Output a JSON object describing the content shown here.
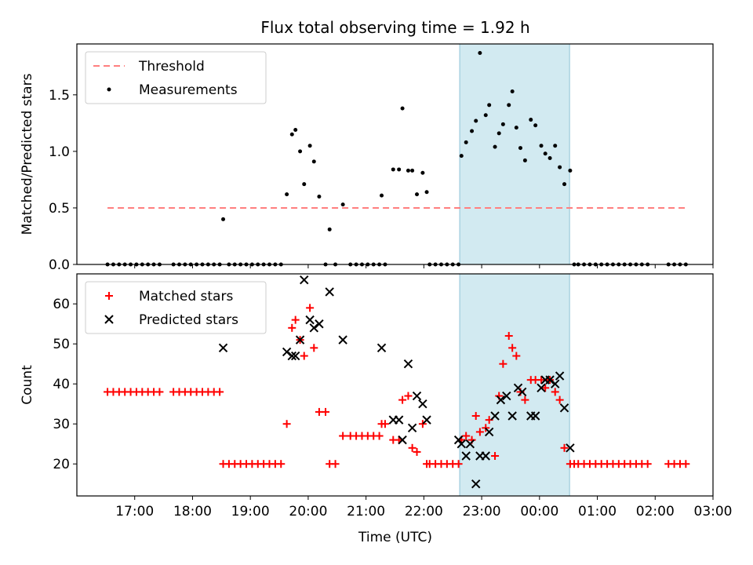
{
  "chart_data": {
    "type": "scatter",
    "title": "Flux total observing time = 1.92 h",
    "shared_x": {
      "label": "Time (UTC)",
      "unit": "hours since 00:00 UTC of first day (values > 24 are the next day)",
      "range": [
        16.0,
        27.0
      ],
      "ticks": [
        17,
        18,
        19,
        20,
        21,
        22,
        23,
        24,
        25,
        26,
        27
      ],
      "tick_labels": [
        "17:00",
        "18:00",
        "19:00",
        "20:00",
        "21:00",
        "22:00",
        "23:00",
        "00:00",
        "01:00",
        "02:00",
        "03:00"
      ]
    },
    "highlight_span": {
      "x_start": 22.62,
      "x_end": 24.52,
      "color": "#add8e6"
    },
    "panels": [
      {
        "ylabel": "Matched/Predicted stars",
        "ylim": [
          0,
          1.95
        ],
        "yticks": [
          0.0,
          0.5,
          1.0,
          1.5
        ],
        "ytick_labels": [
          "0.0",
          "0.5",
          "1.0",
          "1.5"
        ],
        "legend_position": "upper-left",
        "legend": [
          {
            "label": "Threshold",
            "style": "dashed-line",
            "color": "#ff7f7f"
          },
          {
            "label": "Measurements",
            "style": "dot",
            "color": "#000000"
          }
        ],
        "threshold": {
          "y": 0.5,
          "x_range": [
            16.53,
            26.53
          ],
          "color": "#ff7f7f"
        },
        "series": [
          {
            "name": "Measurements",
            "color": "#000000",
            "x": [
              16.53,
              16.63,
              16.73,
              16.83,
              16.93,
              17.03,
              17.13,
              17.23,
              17.33,
              17.43,
              17.67,
              17.77,
              17.87,
              17.97,
              18.07,
              18.17,
              18.27,
              18.37,
              18.47,
              18.53,
              18.63,
              18.73,
              18.83,
              18.93,
              19.03,
              19.13,
              19.23,
              19.33,
              19.43,
              19.53,
              19.63,
              19.72,
              19.78,
              19.86,
              19.93,
              20.03,
              20.1,
              20.19,
              20.3,
              20.37,
              20.47,
              20.6,
              20.73,
              20.83,
              20.93,
              21.03,
              21.13,
              21.23,
              21.27,
              21.33,
              21.47,
              21.57,
              21.63,
              21.73,
              21.8,
              21.88,
              21.98,
              22.05,
              22.1,
              22.2,
              22.3,
              22.4,
              22.5,
              22.6,
              22.65,
              22.73,
              22.83,
              22.9,
              22.97,
              23.07,
              23.13,
              23.23,
              23.3,
              23.37,
              23.47,
              23.53,
              23.6,
              23.67,
              23.75,
              23.85,
              23.93,
              24.03,
              24.1,
              24.18,
              24.27,
              24.35,
              24.43,
              24.53,
              24.6,
              24.67,
              24.77,
              24.87,
              24.97,
              25.07,
              25.17,
              25.27,
              25.37,
              25.47,
              25.57,
              25.67,
              25.77,
              25.87,
              26.23,
              26.33,
              26.43,
              26.53
            ],
            "y": [
              0,
              0,
              0,
              0,
              0,
              0,
              0,
              0,
              0,
              0,
              0,
              0,
              0,
              0,
              0,
              0,
              0,
              0,
              0,
              0.4,
              0,
              0,
              0,
              0,
              0,
              0,
              0,
              0,
              0,
              0,
              0.62,
              1.15,
              1.19,
              1.0,
              0.71,
              1.05,
              0.91,
              0.6,
              0,
              0.31,
              0,
              0.53,
              0,
              0,
              0,
              0,
              0,
              0,
              0.61,
              0,
              0.84,
              0.84,
              1.38,
              0.83,
              0.83,
              0.62,
              0.81,
              0.64,
              0,
              0,
              0,
              0,
              0,
              0,
              0.96,
              1.08,
              1.18,
              1.27,
              1.87,
              1.32,
              1.41,
              1.04,
              1.16,
              1.24,
              1.41,
              1.53,
              1.21,
              1.03,
              0.92,
              1.28,
              1.23,
              1.05,
              0.98,
              0.94,
              1.05,
              0.86,
              0.71,
              0.83,
              0,
              0,
              0,
              0,
              0,
              0,
              0,
              0,
              0,
              0,
              0,
              0,
              0,
              0,
              0,
              0,
              0,
              0
            ]
          }
        ]
      },
      {
        "ylabel": "Count",
        "ylim": [
          12,
          67.5
        ],
        "yticks": [
          20,
          30,
          40,
          50,
          60
        ],
        "ytick_labels": [
          "20",
          "30",
          "40",
          "50",
          "60"
        ],
        "legend_position": "upper-left",
        "legend": [
          {
            "label": "Matched stars",
            "style": "plus",
            "color": "#ff0000"
          },
          {
            "label": "Predicted stars",
            "style": "x",
            "color": "#000000"
          }
        ],
        "series": [
          {
            "name": "Matched stars",
            "marker": "plus",
            "color": "#ff0000",
            "x": [
              16.53,
              16.63,
              16.73,
              16.83,
              16.93,
              17.03,
              17.13,
              17.23,
              17.33,
              17.43,
              17.67,
              17.77,
              17.87,
              17.97,
              18.07,
              18.17,
              18.27,
              18.37,
              18.47,
              18.53,
              18.63,
              18.73,
              18.83,
              18.93,
              19.03,
              19.13,
              19.23,
              19.33,
              19.43,
              19.53,
              19.63,
              19.72,
              19.78,
              19.86,
              19.93,
              20.03,
              20.1,
              20.19,
              20.3,
              20.37,
              20.47,
              20.6,
              20.73,
              20.83,
              20.93,
              21.03,
              21.13,
              21.23,
              21.27,
              21.33,
              21.47,
              21.57,
              21.63,
              21.73,
              21.8,
              21.88,
              21.98,
              22.05,
              22.1,
              22.2,
              22.3,
              22.4,
              22.5,
              22.6,
              22.65,
              22.73,
              22.83,
              22.9,
              22.97,
              23.07,
              23.13,
              23.23,
              23.3,
              23.37,
              23.47,
              23.53,
              23.6,
              23.67,
              23.75,
              23.85,
              23.93,
              24.03,
              24.1,
              24.18,
              24.27,
              24.35,
              24.43,
              24.53,
              24.6,
              24.67,
              24.77,
              24.87,
              24.97,
              25.07,
              25.17,
              25.27,
              25.37,
              25.47,
              25.57,
              25.67,
              25.77,
              25.87,
              26.23,
              26.33,
              26.43,
              26.53
            ],
            "y": [
              38,
              38,
              38,
              38,
              38,
              38,
              38,
              38,
              38,
              38,
              38,
              38,
              38,
              38,
              38,
              38,
              38,
              38,
              38,
              20,
              20,
              20,
              20,
              20,
              20,
              20,
              20,
              20,
              20,
              20,
              30,
              54,
              56,
              51,
              47,
              59,
              49,
              33,
              33,
              20,
              20,
              27,
              27,
              27,
              27,
              27,
              27,
              27,
              30,
              30,
              26,
              26,
              36,
              37,
              24,
              23,
              30,
              20,
              20,
              20,
              20,
              20,
              20,
              20,
              26,
              27,
              26,
              32,
              28,
              29,
              31,
              22,
              37,
              45,
              52,
              49,
              47,
              38,
              36,
              41,
              41,
              41,
              39,
              41,
              38,
              36,
              24,
              20,
              20,
              20,
              20,
              20,
              20,
              20,
              20,
              20,
              20,
              20,
              20,
              20,
              20,
              20,
              20,
              20,
              20,
              20
            ]
          },
          {
            "name": "Predicted stars",
            "marker": "x",
            "color": "#000000",
            "x": [
              18.53,
              19.63,
              19.72,
              19.78,
              19.86,
              19.93,
              20.03,
              20.1,
              20.19,
              20.37,
              20.6,
              21.27,
              21.47,
              21.57,
              21.63,
              21.73,
              21.8,
              21.88,
              21.98,
              22.05,
              22.6,
              22.65,
              22.73,
              22.8,
              22.9,
              22.97,
              23.07,
              23.13,
              23.23,
              23.33,
              23.43,
              23.53,
              23.63,
              23.7,
              23.85,
              23.93,
              24.03,
              24.1,
              24.18,
              24.27,
              24.35,
              24.43,
              24.53
            ],
            "y": [
              49,
              48,
              47,
              47,
              51,
              66,
              56,
              54,
              55,
              63,
              51,
              49,
              31,
              31,
              26,
              45,
              29,
              37,
              35,
              31,
              26,
              25,
              22,
              25,
              15,
              22,
              22,
              28,
              32,
              36,
              37,
              32,
              39,
              38,
              32,
              32,
              39,
              41,
              41,
              40,
              42,
              34,
              24
            ]
          }
        ]
      }
    ]
  }
}
